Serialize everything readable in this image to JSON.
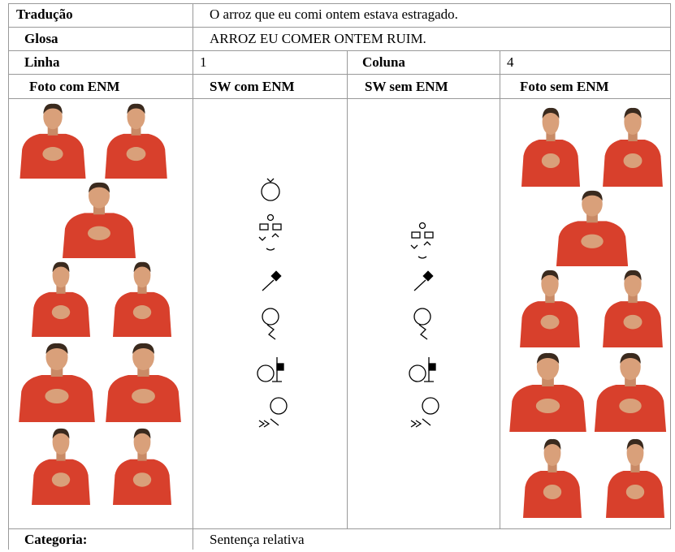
{
  "translation": {
    "label": "Tradução",
    "text": "O arroz que eu comi ontem estava estragado."
  },
  "gloss": {
    "label": "Glosa",
    "text": "ARROZ EU COMER ONTEM RUIM."
  },
  "position": {
    "line_label": "Linha",
    "line": 1,
    "column_label": "Coluna",
    "column": 4
  },
  "headers": [
    "Foto com ENM",
    "SW com ENM",
    "SW sem ENM",
    "Foto sem ENM"
  ],
  "category": {
    "label": "Categoria:",
    "text": "Sentença relativa"
  }
}
